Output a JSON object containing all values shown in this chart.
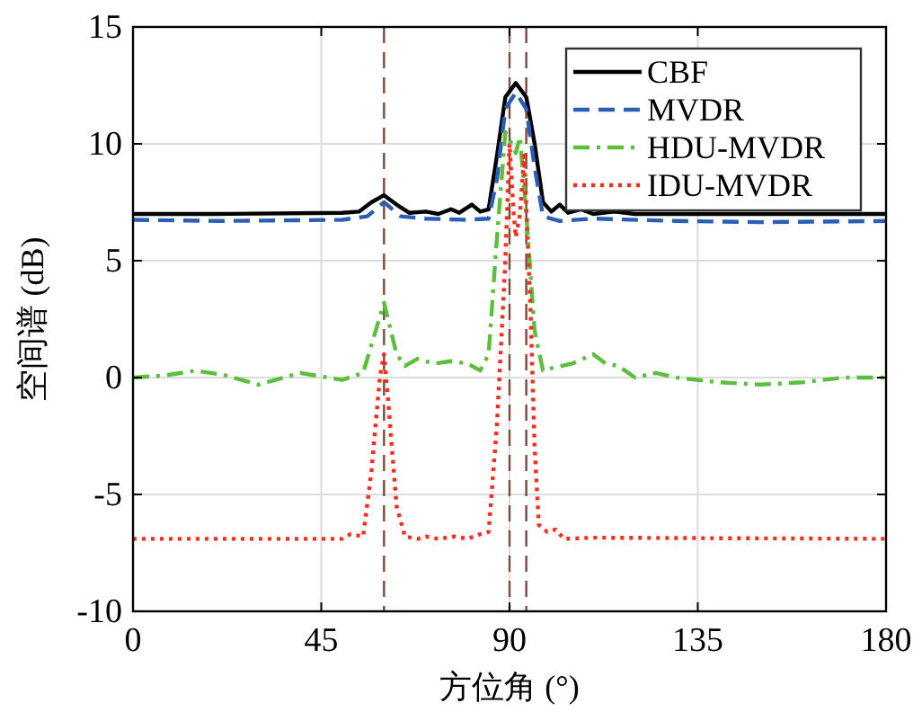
{
  "chart_data": {
    "type": "line",
    "xlabel": "方位角 (°)",
    "ylabel": "空间谱 (dB)",
    "xlim": [
      0,
      180
    ],
    "xticks": [
      0,
      45,
      90,
      135,
      180
    ],
    "ylim": [
      -10,
      15
    ],
    "yticks": [
      -10,
      -5,
      0,
      5,
      10,
      15
    ],
    "grid": true,
    "legend": "top right",
    "marker": "none",
    "series": [
      {
        "name": "CBF",
        "color": "#000000",
        "line_style": "solid",
        "x": [
          0,
          20,
          50,
          54,
          57,
          60,
          63,
          66,
          70,
          73,
          76,
          78,
          81,
          83,
          85,
          87,
          89,
          91.5,
          94,
          96,
          98,
          100,
          102,
          104,
          107,
          110,
          115,
          120,
          180
        ],
        "values": [
          7,
          7,
          7.05,
          7.1,
          7.5,
          7.8,
          7.4,
          7.05,
          7.1,
          7.0,
          7.2,
          7.05,
          7.4,
          7.1,
          7.2,
          9.5,
          12.0,
          12.6,
          12.0,
          10,
          7.5,
          7.1,
          7.4,
          7.05,
          7.2,
          7.0,
          7.1,
          7.0,
          7.0
        ]
      },
      {
        "name": "MVDR",
        "color": "#2a5fb5",
        "line_style": "dashed",
        "x": [
          0,
          20,
          50,
          56,
          60,
          64,
          70,
          80,
          85,
          87,
          89,
          91.5,
          94,
          96,
          98,
          102,
          110,
          130,
          150,
          180
        ],
        "values": [
          6.75,
          6.7,
          6.75,
          6.9,
          7.5,
          6.9,
          6.8,
          6.75,
          6.8,
          8.5,
          11.5,
          12.2,
          11.5,
          9,
          6.9,
          6.7,
          6.8,
          6.7,
          6.65,
          6.7
        ]
      },
      {
        "name": "HDU-MVDR",
        "color": "#5cbf3c",
        "line_style": "dashdot",
        "x": [
          0,
          8,
          15,
          22,
          30,
          40,
          50,
          55,
          58,
          60,
          63,
          65,
          68,
          72,
          76,
          80,
          83,
          85,
          87,
          89,
          90.5,
          91.5,
          92.5,
          94,
          96,
          98,
          100,
          105,
          110,
          113,
          116,
          120,
          125,
          130,
          140,
          150,
          160,
          170,
          180
        ],
        "values": [
          0,
          0.1,
          0.3,
          0.1,
          -0.3,
          0.2,
          -0.1,
          0.2,
          2,
          3.2,
          1,
          0.5,
          0.8,
          0.6,
          0.7,
          0.6,
          0.3,
          1,
          6,
          10.5,
          10,
          9.6,
          10.3,
          7,
          2,
          0.3,
          0.4,
          0.6,
          1.0,
          0.6,
          0.5,
          0,
          0.2,
          0,
          -0.2,
          -0.3,
          -0.2,
          0,
          0
        ]
      },
      {
        "name": "IDU-MVDR",
        "color": "#ff2a1a",
        "line_style": "dotted",
        "x": [
          0,
          50,
          52,
          55,
          57,
          59,
          60,
          61,
          63,
          65,
          68,
          70,
          73,
          77,
          80,
          83,
          85,
          87,
          89,
          90,
          91,
          91.5,
          92.5,
          93.5,
          95,
          96,
          97,
          99,
          101,
          103,
          110,
          180
        ],
        "values": [
          -6.9,
          -6.9,
          -6.7,
          -6.8,
          -4,
          0,
          1.0,
          -1,
          -5.5,
          -6.8,
          -6.9,
          -6.8,
          -6.9,
          -6.8,
          -6.9,
          -6.7,
          -6.6,
          -2,
          5,
          10,
          7,
          6,
          7,
          9.5,
          3,
          -3,
          -6.3,
          -6.6,
          -6.5,
          -6.9,
          -6.85,
          -6.9
        ]
      }
    ],
    "ref_lines": [
      {
        "axis": "x",
        "value": 60,
        "color": "#7a4a3a",
        "line_style": "dashed"
      },
      {
        "axis": "x",
        "value": 90,
        "color": "#7a4a3a",
        "line_style": "dashed"
      },
      {
        "axis": "x",
        "value": 94,
        "color": "#7a4a3a",
        "line_style": "dashed"
      }
    ]
  }
}
